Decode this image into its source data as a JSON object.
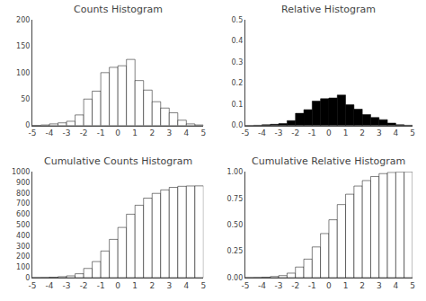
{
  "chart_data": [
    {
      "type": "bar",
      "title": "Counts Histogram",
      "bins": [
        -5.0,
        -4.5,
        -4.0,
        -3.5,
        -3.0,
        -2.5,
        -2.0,
        -1.5,
        -1.0,
        -0.5,
        0.0,
        0.5,
        1.0,
        1.5,
        2.0,
        2.5,
        3.0,
        3.5,
        4.0,
        4.5,
        5.0
      ],
      "values": [
        0,
        1,
        3,
        5,
        8,
        20,
        50,
        65,
        100,
        110,
        113,
        125,
        85,
        67,
        45,
        33,
        24,
        10,
        3,
        1
      ],
      "color": "#ffffff",
      "xlim": [
        -5,
        5
      ],
      "xticks": [
        -5,
        -4,
        -3,
        -2,
        -1,
        0,
        1,
        2,
        3,
        4,
        5
      ],
      "ylim": [
        0,
        200
      ],
      "yticks": [
        0,
        50,
        100,
        150,
        200
      ],
      "grid": false
    },
    {
      "type": "bar",
      "title": "Relative Histogram",
      "bins": [
        -5.0,
        -4.5,
        -4.0,
        -3.5,
        -3.0,
        -2.5,
        -2.0,
        -1.5,
        -1.0,
        -0.5,
        0.0,
        0.5,
        1.0,
        1.5,
        2.0,
        2.5,
        3.0,
        3.5,
        4.0,
        4.5,
        5.0
      ],
      "values": [
        0,
        0.0011520737,
        0.0034562212,
        0.0057603687,
        0.0092165899,
        0.0230414747,
        0.0576036866,
        0.0748847926,
        0.1152073733,
        0.1267281106,
        0.1301843318,
        0.1440092166,
        0.0979262673,
        0.0771889401,
        0.051843318,
        0.0380184332,
        0.0276497696,
        0.0115207373,
        0.0034562212,
        0.0011520737
      ],
      "color": "#000000",
      "xlim": [
        -5,
        5
      ],
      "xticks": [
        -5,
        -4,
        -3,
        -2,
        -1,
        0,
        1,
        2,
        3,
        4,
        5
      ],
      "ylim": [
        0,
        0.5
      ],
      "yticks": [
        {
          "value": 0,
          "label": "0.0"
        },
        0.1,
        0.2,
        0.3,
        0.4,
        0.5
      ],
      "grid": false
    },
    {
      "type": "bar",
      "title": "Cumulative Counts Histogram",
      "bins": [
        -5.0,
        -4.5,
        -4.0,
        -3.5,
        -3.0,
        -2.5,
        -2.0,
        -1.5,
        -1.0,
        -0.5,
        0.0,
        0.5,
        1.0,
        1.5,
        2.0,
        2.5,
        3.0,
        3.5,
        4.0,
        4.5,
        5.0
      ],
      "values": [
        0,
        1,
        4,
        9,
        17,
        37,
        87,
        152,
        252,
        362,
        475,
        600,
        685,
        752,
        797,
        830,
        854,
        864,
        867,
        868
      ],
      "color": "#ffffff",
      "xlim": [
        -5,
        5
      ],
      "xticks": [
        -5,
        -4,
        -3,
        -2,
        -1,
        0,
        1,
        2,
        3,
        4,
        5
      ],
      "ylim": [
        0,
        1000
      ],
      "yticks": [
        0,
        100,
        200,
        300,
        400,
        500,
        600,
        700,
        800,
        900,
        1000
      ],
      "grid": false
    },
    {
      "type": "bar",
      "title": "Cumulative Relative Histogram",
      "bins": [
        -5.0,
        -4.5,
        -4.0,
        -3.5,
        -3.0,
        -2.5,
        -2.0,
        -1.5,
        -1.0,
        -0.5,
        0.0,
        0.5,
        1.0,
        1.5,
        2.0,
        2.5,
        3.0,
        3.5,
        4.0,
        4.5,
        5.0
      ],
      "values": [
        0,
        0.0011520737,
        0.0046082949,
        0.0103686636,
        0.0195852535,
        0.0426267281,
        0.1002304147,
        0.1751152074,
        0.2903225806,
        0.4170506912,
        0.547235023,
        0.6912442396,
        0.7891705069,
        0.866359447,
        0.918202765,
        0.9562211982,
        0.9838709677,
        0.9953917051,
        0.9988479263,
        1
      ],
      "color": "#ffffff",
      "xlim": [
        -5,
        5
      ],
      "xticks": [
        -5,
        -4,
        -3,
        -2,
        -1,
        0,
        1,
        2,
        3,
        4,
        5
      ],
      "ylim": [
        0,
        1
      ],
      "yticks": [
        {
          "value": 0,
          "label": "0.00"
        },
        0.25,
        {
          "value": 0.5,
          "label": "0.50"
        },
        0.75,
        {
          "value": 1,
          "label": "1.00"
        }
      ],
      "grid": false
    }
  ]
}
